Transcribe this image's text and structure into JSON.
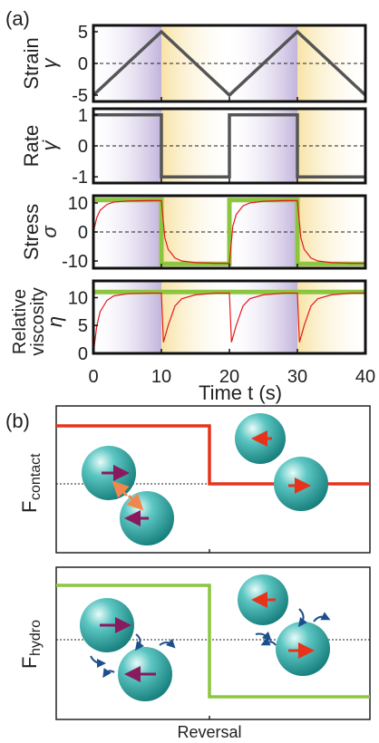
{
  "panel_a": {
    "label": "(a)",
    "x_axis": {
      "label": "Time t (s)",
      "tick_labels": [
        "0",
        "10",
        "20",
        "30",
        "40"
      ]
    },
    "subplots": [
      {
        "ylabel": "Strain",
        "symbol": "γ",
        "yticks": [
          "5",
          "0",
          "-5"
        ]
      },
      {
        "ylabel": "Rate",
        "symbol": "γ̇",
        "yticks": [
          "1",
          "0",
          "-1"
        ]
      },
      {
        "ylabel": "Stress",
        "symbol": "σ",
        "yticks": [
          "10",
          "0",
          "-10"
        ]
      },
      {
        "ylabel": "Relative viscosity",
        "ylabel_line1": "Relative",
        "ylabel_line2": "viscosity",
        "symbol": "η",
        "yticks": [
          "10",
          "5",
          "0"
        ]
      }
    ],
    "colors": {
      "purple_band": "#c9bde0",
      "yellow_band": "#fbeec4",
      "ideal_curve": "#8cc63f",
      "measured_curve": "#e41a1c",
      "drive_curve": "#555555"
    }
  },
  "panel_b": {
    "label": "(b)",
    "top_ylabel_main": "F",
    "top_ylabel_sub": "contact",
    "bottom_ylabel_main": "F",
    "bottom_ylabel_sub": "hydro",
    "xlabel": "Reversal",
    "colors": {
      "contact_line": "#e8331b",
      "hydro_line": "#8cc63f",
      "sphere": "#2aa9a7",
      "arrow_purple": "#8a1a5e",
      "arrow_red": "#e8331b",
      "arrow_orange": "#f0884e",
      "flow_arrow": "#1d4f8c"
    }
  },
  "chart_data": [
    {
      "type": "line",
      "panel": "strain",
      "ylabel": "Strain γ",
      "xlabel": "Time t (s)",
      "xlim": [
        0,
        40
      ],
      "ylim": [
        -6,
        6
      ],
      "series": [
        {
          "x": [
            0,
            10,
            20,
            30,
            40
          ],
          "y": [
            -5,
            5,
            -5,
            5,
            -5
          ]
        }
      ]
    },
    {
      "type": "line",
      "panel": "rate",
      "ylabel": "Rate γ̇",
      "xlabel": "Time t (s)",
      "xlim": [
        0,
        40
      ],
      "ylim": [
        -1.2,
        1.2
      ],
      "series": [
        {
          "x": [
            0,
            10,
            10,
            20,
            20,
            30,
            30,
            40
          ],
          "y": [
            1,
            1,
            -1,
            -1,
            1,
            1,
            -1,
            -1
          ]
        }
      ]
    },
    {
      "type": "line",
      "panel": "stress",
      "ylabel": "Stress σ",
      "xlabel": "Time t (s)",
      "xlim": [
        0,
        40
      ],
      "ylim": [
        -12.5,
        12.5
      ],
      "series": [
        {
          "x": [
            0,
            10,
            10,
            20,
            20,
            30,
            30,
            40
          ],
          "y": [
            11,
            11,
            -11,
            -11,
            11,
            11,
            -11,
            -11
          ]
        },
        {
          "x": [
            0,
            0.5,
            1,
            2,
            3,
            5,
            8,
            10,
            10.5,
            11,
            12,
            13,
            15,
            18,
            20,
            20.5,
            21,
            22,
            23,
            25,
            28,
            30,
            30.5,
            31,
            32,
            33,
            35,
            38,
            40
          ],
          "y": [
            0,
            5,
            7.5,
            9.5,
            10.3,
            10.7,
            10.8,
            10.8,
            -2,
            -6,
            -9,
            -10,
            -10.6,
            -10.8,
            -10.8,
            2,
            6,
            9,
            10,
            10.6,
            10.8,
            10.8,
            -2,
            -6,
            -9,
            -10,
            -10.6,
            -10.8,
            -10.8
          ]
        }
      ]
    },
    {
      "type": "line",
      "panel": "relative_viscosity",
      "ylabel": "Relative viscosity η",
      "xlabel": "Time t (s)",
      "xlim": [
        0,
        40
      ],
      "ylim": [
        0,
        13
      ],
      "series": [
        {
          "x": [
            0,
            40
          ],
          "y": [
            11,
            11
          ]
        },
        {
          "x": [
            0,
            0.5,
            1,
            2,
            3,
            5,
            8,
            10,
            10.3,
            11,
            12,
            13,
            15,
            18,
            20,
            20.3,
            21,
            22,
            23,
            25,
            28,
            30,
            30.3,
            31,
            32,
            33,
            35,
            38,
            40
          ],
          "y": [
            0,
            5,
            7.5,
            9.5,
            10.3,
            10.7,
            10.8,
            10.8,
            2,
            5,
            8.5,
            9.8,
            10.5,
            10.8,
            10.8,
            2,
            5,
            8.5,
            9.8,
            10.5,
            10.8,
            10.8,
            2,
            5,
            8.5,
            9.8,
            10.5,
            10.8,
            10.8
          ]
        }
      ]
    },
    {
      "type": "line",
      "panel": "F_contact",
      "series": [
        {
          "x": [
            0,
            1,
            1,
            2
          ],
          "y": [
            1,
            1,
            0,
            0
          ]
        }
      ]
    },
    {
      "type": "line",
      "panel": "F_hydro",
      "series": [
        {
          "x": [
            0,
            1,
            1,
            2
          ],
          "y": [
            1,
            1,
            -1,
            -1
          ]
        }
      ]
    }
  ]
}
